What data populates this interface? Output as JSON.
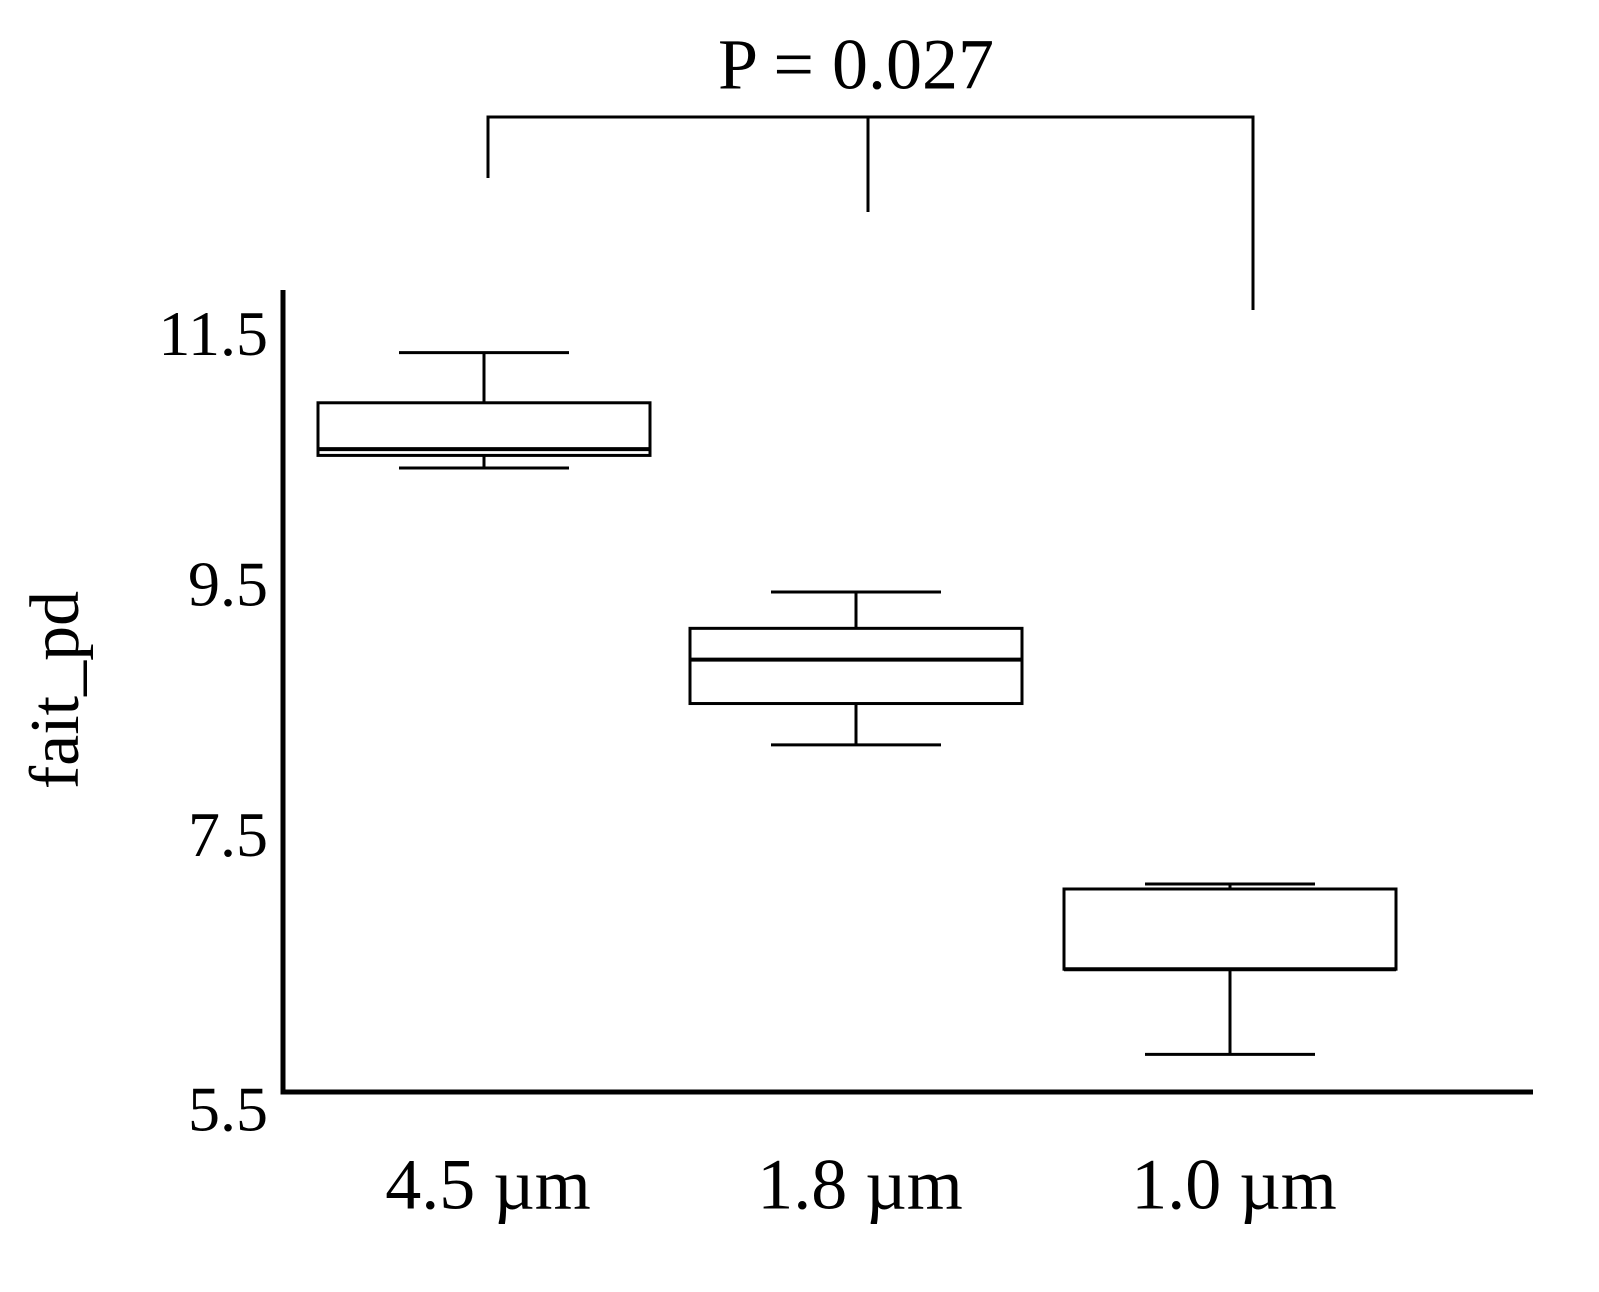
{
  "chart_data": {
    "type": "box",
    "annotation": "P = 0.027",
    "y_label": "fait_pd",
    "categories": [
      "4.5 µm",
      "1.8 µm",
      "1.0 µm"
    ],
    "boxes": [
      {
        "min": 10.48,
        "q1": 10.58,
        "median": 10.63,
        "q3": 11.0,
        "max": 11.4
      },
      {
        "min": 8.27,
        "q1": 8.6,
        "median": 8.95,
        "q3": 9.2,
        "max": 9.49
      },
      {
        "min": 5.8,
        "q1": 6.48,
        "median": 6.48,
        "q3": 7.12,
        "max": 7.16
      }
    ],
    "color": "#000000",
    "ylim": [
      5.5,
      11.9
    ],
    "yticks": [
      5.5,
      7.5,
      9.5,
      11.5
    ]
  }
}
